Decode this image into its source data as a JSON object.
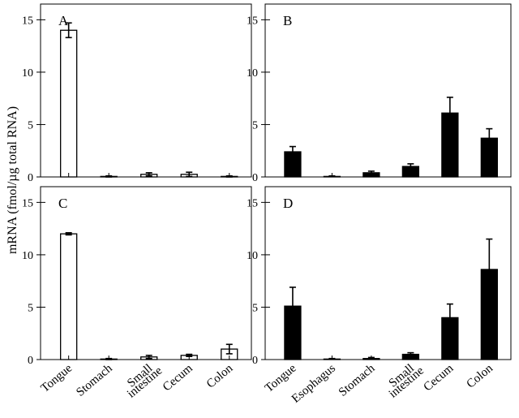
{
  "figure": {
    "ylabel": "mRNA (fmol/µg total RNA)"
  },
  "chart_data": [
    {
      "type": "bar",
      "panel_label": "A",
      "categories": [
        "Tongue",
        "Stomach",
        "Small intestine",
        "Cecum",
        "Colon"
      ],
      "category_lines": [
        [
          "Tongue"
        ],
        [
          "Stomach"
        ],
        [
          "Small",
          "intestine"
        ],
        [
          "Cecum"
        ],
        [
          "Colon"
        ]
      ],
      "values": [
        14.0,
        0.05,
        0.25,
        0.25,
        0.05
      ],
      "errors": [
        0.7,
        0.05,
        0.15,
        0.2,
        0.05
      ],
      "fill": "#ffffff",
      "ylim": [
        0,
        16.5
      ],
      "yticks": [
        0,
        5,
        10,
        15
      ],
      "grid": false,
      "show_xlabels": false
    },
    {
      "type": "bar",
      "panel_label": "B",
      "categories": [
        "Tongue",
        "Esophagus",
        "Stomach",
        "Small intestine",
        "Cecum",
        "Colon"
      ],
      "category_lines": [
        [
          "Tongue"
        ],
        [
          "Esophagus"
        ],
        [
          "Stomach"
        ],
        [
          "Small",
          "intestine"
        ],
        [
          "Cecum"
        ],
        [
          "Colon"
        ]
      ],
      "values": [
        2.4,
        0.05,
        0.4,
        1.0,
        6.1,
        3.7
      ],
      "errors": [
        0.5,
        0.05,
        0.15,
        0.25,
        1.5,
        0.9
      ],
      "fill": "#000000",
      "ylim": [
        0,
        16.5
      ],
      "yticks": [
        0,
        5,
        10,
        15
      ],
      "grid": false,
      "show_xlabels": false
    },
    {
      "type": "bar",
      "panel_label": "C",
      "categories": [
        "Tongue",
        "Stomach",
        "Small intestine",
        "Cecum",
        "Colon"
      ],
      "category_lines": [
        [
          "Tongue"
        ],
        [
          "Stomach"
        ],
        [
          "Small",
          "intestine"
        ],
        [
          "Cecum"
        ],
        [
          "Colon"
        ]
      ],
      "values": [
        12.0,
        0.05,
        0.25,
        0.4,
        1.0
      ],
      "errors": [
        0.1,
        0.05,
        0.15,
        0.1,
        0.45
      ],
      "fill": "#ffffff",
      "ylim": [
        0,
        16.5
      ],
      "yticks": [
        0,
        5,
        10,
        15
      ],
      "grid": false,
      "show_xlabels": true
    },
    {
      "type": "bar",
      "panel_label": "D",
      "categories": [
        "Tongue",
        "Esophagus",
        "Stomach",
        "Small intestine",
        "Cecum",
        "Colon"
      ],
      "category_lines": [
        [
          "Tongue"
        ],
        [
          "Esophagus"
        ],
        [
          "Stomach"
        ],
        [
          "Small",
          "intestine"
        ],
        [
          "Cecum"
        ],
        [
          "Colon"
        ]
      ],
      "values": [
        5.1,
        0.05,
        0.1,
        0.5,
        4.0,
        8.6
      ],
      "errors": [
        1.8,
        0.05,
        0.1,
        0.15,
        1.3,
        2.9
      ],
      "fill": "#000000",
      "ylim": [
        0,
        16.5
      ],
      "yticks": [
        0,
        5,
        10,
        15
      ],
      "grid": false,
      "show_xlabels": true
    }
  ]
}
